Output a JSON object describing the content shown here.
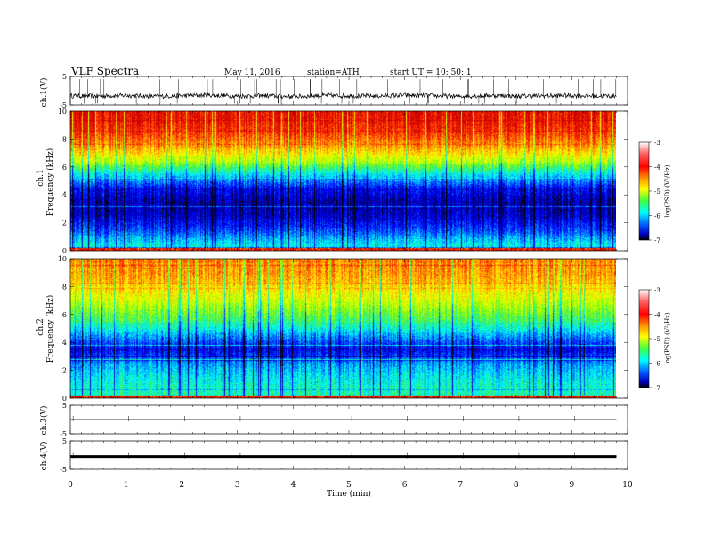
{
  "header": {
    "title": "VLF  Spectra",
    "date": "May 11, 2016",
    "station": "station=ATH",
    "start": "start  UT  =    10: 50: 1"
  },
  "chart_data": [
    {
      "type": "line",
      "panel": "ch1-waveform",
      "ylabel": "ch.1(V)",
      "yticks": [
        "5",
        "-5"
      ],
      "ylim": [
        -5,
        5
      ],
      "x": [
        0.0,
        0.5,
        1.0,
        1.5,
        2.0,
        2.5,
        3.0,
        3.5,
        4.0,
        4.5,
        5.0,
        5.5,
        6.0,
        6.5,
        7.0,
        7.5,
        8.0,
        8.5,
        9.0,
        9.5,
        9.8
      ],
      "values": [
        -1.8,
        -1.9,
        -1.7,
        -2.0,
        -1.8,
        -1.6,
        -1.9,
        -1.8,
        -2.1,
        -1.7,
        -1.8,
        -1.9,
        -1.6,
        -1.8,
        -2.0,
        -1.7,
        -1.9,
        -1.8,
        -1.7,
        -1.9,
        -1.8
      ]
    },
    {
      "type": "heatmap",
      "panel": "ch1-spectrogram",
      "ylabel": "Frequency  (kHz)",
      "ylabel2": "ch.1",
      "ylim": [
        0,
        10
      ],
      "yticks": [
        "0",
        "2",
        "4",
        "6",
        "8",
        "10"
      ],
      "freq_bands_khz": [
        0,
        1,
        2,
        3,
        4,
        5,
        6,
        7,
        8,
        9,
        10
      ],
      "log_psd_profile": [
        -5.6,
        -6.2,
        -6.6,
        -6.7,
        -6.4,
        -5.6,
        -4.6,
        -4.0,
        -3.6,
        -3.4
      ],
      "colorbar": {
        "label": "log(PSD) (V²/Hz)",
        "ticks": [
          "-3",
          "-4",
          "-5",
          "-6",
          "-7"
        ],
        "range": [
          -7,
          -3
        ]
      }
    },
    {
      "type": "heatmap",
      "panel": "ch2-spectrogram",
      "ylabel": "Frequency  (kHz)",
      "ylabel2": "ch.2",
      "ylim": [
        0,
        10
      ],
      "yticks": [
        "0",
        "2",
        "4",
        "6",
        "8",
        "10"
      ],
      "freq_bands_khz": [
        0,
        1,
        2,
        3,
        4,
        5,
        6,
        7,
        8,
        9,
        10
      ],
      "log_psd_profile": [
        -5.4,
        -5.6,
        -5.9,
        -6.5,
        -5.9,
        -5.2,
        -4.8,
        -4.4,
        -4.1,
        -3.9
      ],
      "colorbar": {
        "label": "log(PSD) (V²/Hz)",
        "ticks": [
          "-3",
          "-4",
          "-5",
          "-6",
          "-7"
        ],
        "range": [
          -7,
          -3
        ]
      }
    },
    {
      "type": "line",
      "panel": "ch3-waveform",
      "ylabel": "ch.3(V)",
      "yticks": [
        "5",
        "-5"
      ],
      "ylim": [
        -5,
        5
      ],
      "x": [
        0,
        9.8
      ],
      "values": [
        0,
        0
      ]
    },
    {
      "type": "line",
      "panel": "ch4-waveform",
      "ylabel": "ch.4(V)",
      "yticks": [
        "5",
        "-5"
      ],
      "ylim": [
        -5,
        5
      ],
      "x": [
        0,
        9.8
      ],
      "values": [
        -0.5,
        -0.5
      ]
    }
  ],
  "xaxis": {
    "label": "Time  (min)",
    "ticks": [
      "0",
      "1",
      "2",
      "3",
      "4",
      "5",
      "6",
      "7",
      "8",
      "9",
      "10"
    ],
    "range": [
      0,
      10
    ]
  },
  "colors": {
    "scale": [
      "#7a0000",
      "#ff0000",
      "#ff8c00",
      "#ffff00",
      "#7fff00",
      "#00e0a0",
      "#00ffff",
      "#0080ff",
      "#0000ff",
      "#000090",
      "#000000"
    ]
  }
}
